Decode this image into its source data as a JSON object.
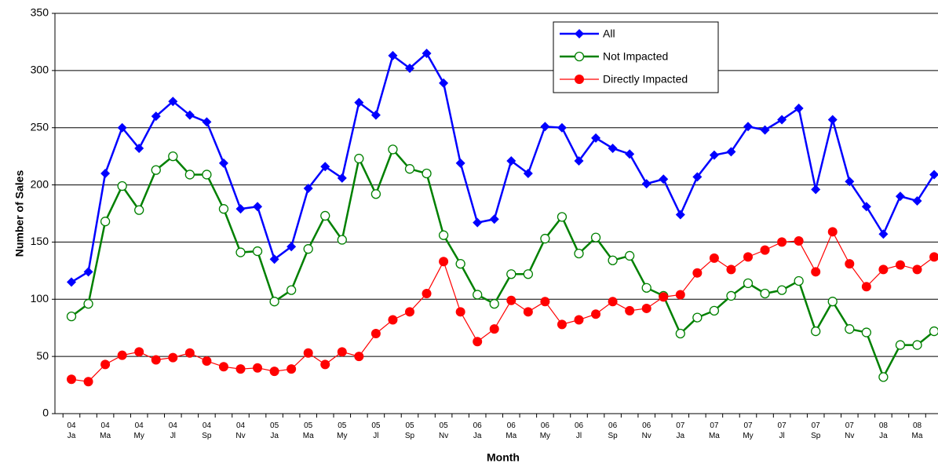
{
  "chart_data": {
    "type": "line",
    "x_label": "Month",
    "y_label": "Number of Sales",
    "categories": [
      "04\nJa",
      null,
      "04\nMa",
      null,
      "04\nMy",
      null,
      "04\nJl",
      null,
      "04\nSp",
      null,
      "04\nNv",
      null,
      "05\nJa",
      null,
      "05\nMa",
      null,
      "05\nMy",
      null,
      "05\nJl",
      null,
      "05\nSp",
      null,
      "05\nNv",
      null,
      "06\nJa",
      null,
      "06\nMa",
      null,
      "06\nMy",
      null,
      "06\nJl",
      null,
      "06\nSp",
      null,
      "06\nNv",
      null,
      "07\nJa",
      null,
      "07\nMa",
      null,
      "07\nMy",
      null,
      "07\nJl",
      null,
      "07\nSp",
      null,
      "07\nNv",
      null,
      "08\nJa",
      null,
      "08\nMa",
      null
    ],
    "series": [
      {
        "name": "All",
        "color": "#0000ff",
        "marker": "diamond",
        "values": [
          115,
          124,
          210,
          250,
          232,
          260,
          273,
          261,
          255,
          219,
          179,
          181,
          135,
          146,
          197,
          216,
          206,
          272,
          261,
          313,
          302,
          315,
          289,
          219,
          167,
          170,
          221,
          210,
          251,
          250,
          221,
          241,
          232,
          227,
          201,
          205,
          174,
          207,
          226,
          229,
          251,
          248,
          257,
          267,
          196,
          257,
          203,
          181,
          157,
          190,
          186,
          209
        ]
      },
      {
        "name": "Not Impacted",
        "color": "#008000",
        "marker": "open-circle",
        "values": [
          85,
          96,
          168,
          199,
          178,
          213,
          225,
          209,
          209,
          179,
          141,
          142,
          98,
          108,
          144,
          173,
          152,
          223,
          192,
          231,
          214,
          210,
          156,
          131,
          104,
          96,
          122,
          122,
          153,
          172,
          140,
          154,
          134,
          138,
          110,
          103,
          70,
          84,
          90,
          103,
          114,
          105,
          108,
          116,
          72,
          98,
          74,
          71,
          32,
          60,
          60,
          72
        ]
      },
      {
        "name": "Directly Impacted",
        "color": "#ff0000",
        "marker": "circle",
        "values": [
          30,
          28,
          43,
          51,
          54,
          47,
          49,
          53,
          46,
          41,
          39,
          40,
          37,
          39,
          53,
          43,
          54,
          50,
          70,
          82,
          89,
          105,
          133,
          89,
          63,
          74,
          99,
          89,
          98,
          78,
          82,
          87,
          98,
          90,
          92,
          102,
          104,
          123,
          136,
          126,
          137,
          143,
          150,
          151,
          124,
          159,
          131,
          111,
          126,
          130,
          126,
          137
        ]
      }
    ],
    "ylim": [
      0,
      350
    ],
    "yticks": [
      0,
      50,
      100,
      150,
      200,
      250,
      300,
      350
    ],
    "grid": true,
    "legend": "top-center"
  }
}
